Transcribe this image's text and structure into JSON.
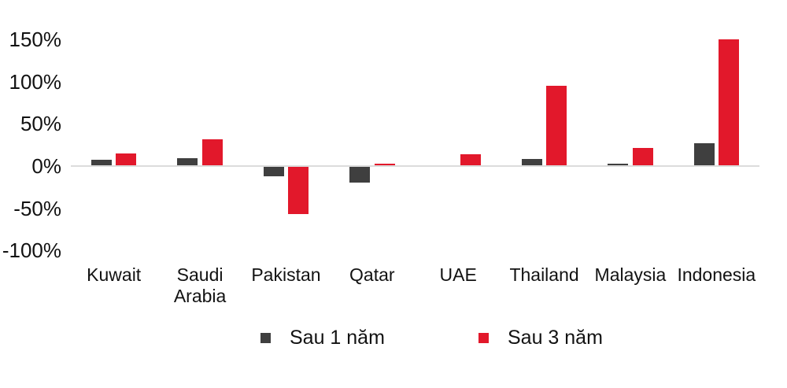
{
  "chart_data": {
    "type": "bar",
    "title": "",
    "xlabel": "",
    "ylabel": "",
    "categories": [
      "Kuwait",
      "Saudi Arabia",
      "Pakistan",
      "Qatar",
      "UAE",
      "Thailand",
      "Malaysia",
      "Indonesia"
    ],
    "series": [
      {
        "name": "Sau 1 năm",
        "color": "#3f3f3f",
        "values": [
          7,
          9,
          -12,
          -20,
          0,
          8,
          3,
          27
        ]
      },
      {
        "name": "Sau 3 năm",
        "color": "#e2182b",
        "values": [
          15,
          32,
          -57,
          3,
          14,
          95,
          21,
          150
        ]
      }
    ],
    "y_ticks": [
      {
        "label": "150%",
        "value": 150
      },
      {
        "label": "100%",
        "value": 100
      },
      {
        "label": "50%",
        "value": 50
      },
      {
        "label": "0%",
        "value": 0
      },
      {
        "label": "-50%",
        "value": -50
      },
      {
        "label": "-100%",
        "value": -100
      }
    ],
    "ylim": [
      -100,
      150
    ],
    "grid": false,
    "legend_position": "bottom"
  },
  "colors": {
    "background": "#ffffff",
    "axis_line": "#dcdcdc",
    "text": "#121212",
    "series_1": "#3f3f3f",
    "series_2": "#e2182b"
  }
}
